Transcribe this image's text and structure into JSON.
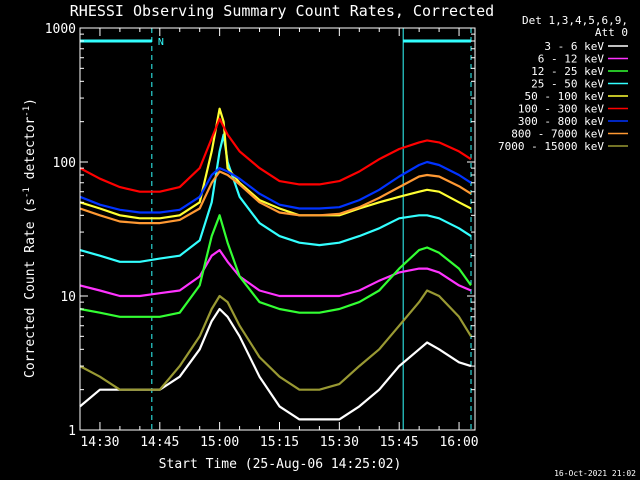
{
  "chart_data": {
    "type": "line",
    "title": "RHESSI Observing Summary Count Rates, Corrected",
    "xlabel": "Start Time (25-Aug-06 14:25:02)",
    "ylabel": "Corrected Count Rate (s^-1 detector^-1)",
    "yscale": "log",
    "ylim": [
      1,
      1000
    ],
    "xlim_minutes": [
      0,
      99
    ],
    "x_tick_labels": [
      "14:30",
      "14:45",
      "15:00",
      "15:15",
      "15:30",
      "15:45",
      "16:00"
    ],
    "x_tick_minutes": [
      5,
      20,
      35,
      50,
      65,
      80,
      95
    ],
    "y_tick_labels": [
      "1",
      "10",
      "100",
      "1000"
    ],
    "y_tick_values": [
      1,
      10,
      100,
      1000
    ],
    "legend_header": [
      "Det 1,3,4,5,6,9,",
      "Att 0"
    ],
    "legend_position": "right",
    "footer": "16-Oct-2021 21:02",
    "night_label": "N",
    "annotations": {
      "night_intervals_minutes": [
        [
          0,
          18
        ],
        [
          81,
          98
        ]
      ],
      "saa_lines_minutes": [
        18,
        81,
        98
      ]
    },
    "series": [
      {
        "name": "3 - 6 keV",
        "color": "#ffffff",
        "x": [
          0,
          5,
          10,
          15,
          20,
          25,
          30,
          33,
          35,
          37,
          40,
          45,
          50,
          55,
          60,
          65,
          70,
          75,
          80,
          85,
          87,
          90,
          95,
          98
        ],
        "y": [
          1.5,
          2,
          2,
          2,
          2,
          2.5,
          4,
          6.5,
          8,
          7,
          5,
          2.5,
          1.5,
          1.2,
          1.2,
          1.2,
          1.5,
          2,
          3,
          4,
          4.5,
          4,
          3.2,
          3
        ]
      },
      {
        "name": "6 - 12 keV",
        "color": "#ff33ff",
        "x": [
          0,
          5,
          10,
          15,
          20,
          25,
          30,
          33,
          35,
          37,
          40,
          45,
          50,
          55,
          60,
          65,
          70,
          75,
          80,
          85,
          87,
          90,
          95,
          98
        ],
        "y": [
          12,
          11,
          10,
          10,
          10.5,
          11,
          14,
          20,
          22,
          18,
          14,
          11,
          10,
          10,
          10,
          10,
          11,
          13,
          15,
          16,
          16,
          15,
          12,
          11
        ]
      },
      {
        "name": "12 - 25 keV",
        "color": "#33ff33",
        "x": [
          0,
          5,
          10,
          15,
          20,
          25,
          30,
          33,
          35,
          37,
          40,
          45,
          50,
          55,
          60,
          65,
          70,
          75,
          80,
          85,
          87,
          90,
          95,
          98
        ],
        "y": [
          8,
          7.5,
          7,
          7,
          7,
          7.5,
          12,
          28,
          40,
          25,
          14,
          9,
          8,
          7.5,
          7.5,
          8,
          9,
          11,
          16,
          22,
          23,
          21,
          16,
          12
        ]
      },
      {
        "name": "25 - 50 keV",
        "color": "#33ffff",
        "x": [
          0,
          5,
          10,
          15,
          20,
          25,
          30,
          33,
          35,
          36,
          37,
          40,
          45,
          50,
          55,
          60,
          65,
          70,
          75,
          80,
          85,
          87,
          90,
          95,
          98
        ],
        "y": [
          22,
          20,
          18,
          18,
          19,
          20,
          26,
          50,
          120,
          160,
          100,
          55,
          35,
          28,
          25,
          24,
          25,
          28,
          32,
          38,
          40,
          40,
          38,
          32,
          28
        ]
      },
      {
        "name": "50 - 100 keV",
        "color": "#ffff33",
        "x": [
          0,
          5,
          10,
          15,
          20,
          25,
          30,
          33,
          35,
          36,
          37,
          40,
          45,
          50,
          55,
          60,
          65,
          70,
          75,
          80,
          85,
          87,
          90,
          95,
          98
        ],
        "y": [
          50,
          45,
          40,
          38,
          38,
          40,
          50,
          120,
          250,
          200,
          90,
          70,
          52,
          45,
          40,
          40,
          40,
          45,
          50,
          55,
          60,
          62,
          60,
          50,
          45
        ]
      },
      {
        "name": "100 - 300 keV",
        "color": "#ff0000",
        "x": [
          0,
          5,
          10,
          15,
          20,
          25,
          30,
          33,
          35,
          37,
          40,
          45,
          50,
          55,
          60,
          65,
          70,
          75,
          80,
          85,
          87,
          90,
          95,
          98
        ],
        "y": [
          90,
          75,
          65,
          60,
          60,
          65,
          90,
          150,
          210,
          160,
          120,
          90,
          72,
          68,
          68,
          72,
          85,
          105,
          125,
          140,
          145,
          140,
          120,
          105
        ]
      },
      {
        "name": "300 - 800 keV",
        "color": "#0033ff",
        "x": [
          0,
          5,
          10,
          15,
          20,
          25,
          30,
          33,
          35,
          37,
          40,
          45,
          50,
          55,
          60,
          65,
          70,
          75,
          80,
          85,
          87,
          90,
          95,
          98
        ],
        "y": [
          55,
          48,
          44,
          42,
          42,
          44,
          55,
          80,
          90,
          85,
          75,
          58,
          48,
          45,
          45,
          46,
          52,
          62,
          78,
          95,
          100,
          95,
          80,
          70
        ]
      },
      {
        "name": "800 - 7000 keV",
        "color": "#ff9933",
        "x": [
          0,
          5,
          10,
          15,
          20,
          25,
          30,
          33,
          35,
          37,
          40,
          45,
          50,
          55,
          60,
          65,
          70,
          75,
          80,
          85,
          87,
          90,
          95,
          98
        ],
        "y": [
          45,
          40,
          36,
          35,
          35,
          37,
          45,
          70,
          85,
          80,
          68,
          50,
          42,
          40,
          40,
          41,
          46,
          54,
          65,
          78,
          80,
          78,
          66,
          58
        ]
      },
      {
        "name": "7000 - 15000 keV",
        "color": "#999933",
        "x": [
          0,
          5,
          10,
          15,
          20,
          25,
          30,
          33,
          35,
          37,
          40,
          45,
          50,
          55,
          60,
          65,
          70,
          75,
          80,
          85,
          87,
          90,
          95,
          98
        ],
        "y": [
          3,
          2.5,
          2,
          2,
          2,
          3,
          5,
          8,
          10,
          9,
          6,
          3.5,
          2.5,
          2,
          2,
          2.2,
          3,
          4,
          6,
          9,
          11,
          10,
          7,
          5
        ]
      }
    ]
  }
}
